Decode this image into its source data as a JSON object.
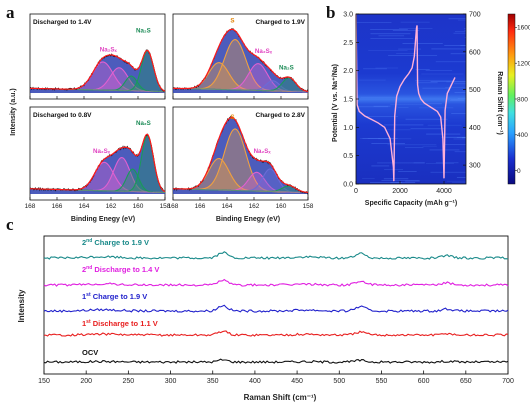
{
  "chart_data": [
    {
      "panel": "a",
      "type": "line",
      "layout": "2x2 grid of XPS S 2p spectra",
      "xlabel": "Binding Enegy (eV)",
      "ylabel": "Intensity (a.u.)",
      "xlim": [
        168,
        158
      ],
      "x_ticks": [
        168,
        166,
        164,
        162,
        160,
        158
      ],
      "subplots": [
        {
          "title": "Discharged to 1.4V",
          "annotations": [
            {
              "text": "Na₂Sₓ",
              "color": "#e040c0"
            },
            {
              "text": "Na₂S",
              "color": "#1a8a55"
            }
          ],
          "components": [
            {
              "center": 162.6,
              "height": 0.42,
              "width": 0.75,
              "color": "#e060d0"
            },
            {
              "center": 161.4,
              "height": 0.34,
              "width": 0.65,
              "color": "#e060d0"
            },
            {
              "center": 160.5,
              "height": 0.22,
              "width": 0.45,
              "color": "#1a9a5a"
            },
            {
              "center": 159.3,
              "height": 0.6,
              "width": 0.45,
              "color": "#1a9a5a"
            }
          ]
        },
        {
          "title": "Charged to 1.9V",
          "annotations": [
            {
              "text": "S",
              "color": "#e08000"
            },
            {
              "text": "Na₂Sₓ",
              "color": "#e040c0"
            },
            {
              "text": "Na₂S",
              "color": "#1a8a55"
            }
          ],
          "components": [
            {
              "center": 164.6,
              "height": 0.4,
              "width": 0.75,
              "color": "#f0a040"
            },
            {
              "center": 163.4,
              "height": 0.75,
              "width": 0.8,
              "color": "#f0a040"
            },
            {
              "center": 161.7,
              "height": 0.4,
              "width": 0.7,
              "color": "#e060d0"
            },
            {
              "center": 160.6,
              "height": 0.15,
              "width": 0.5,
              "color": "#6b6bd6"
            },
            {
              "center": 159.4,
              "height": 0.2,
              "width": 0.5,
              "color": "#1a9a5a"
            }
          ]
        },
        {
          "title": "Discharged to 0.8V",
          "annotations": [
            {
              "text": "Na₂Sₓ",
              "color": "#e040c0"
            },
            {
              "text": "Na₂S",
              "color": "#1a8a55"
            }
          ],
          "components": [
            {
              "center": 162.5,
              "height": 0.38,
              "width": 0.7,
              "color": "#e060d0"
            },
            {
              "center": 161.2,
              "height": 0.45,
              "width": 0.6,
              "color": "#e060d0"
            },
            {
              "center": 160.4,
              "height": 0.3,
              "width": 0.45,
              "color": "#1a9a5a"
            },
            {
              "center": 159.3,
              "height": 0.75,
              "width": 0.45,
              "color": "#1a9a5a"
            }
          ]
        },
        {
          "title": "Charged to 2.8V",
          "annotations": [
            {
              "text": "S",
              "color": "#e08000"
            },
            {
              "text": "Na₂Sₓ",
              "color": "#e040c0"
            }
          ],
          "components": [
            {
              "center": 164.6,
              "height": 0.42,
              "width": 0.75,
              "color": "#f0a040"
            },
            {
              "center": 163.4,
              "height": 0.82,
              "width": 0.8,
              "color": "#f0a040"
            },
            {
              "center": 161.8,
              "height": 0.25,
              "width": 0.6,
              "color": "#e060d0"
            },
            {
              "center": 160.8,
              "height": 0.3,
              "width": 0.55,
              "color": "#6b6bd6"
            },
            {
              "center": 159.4,
              "height": 0.08,
              "width": 0.5,
              "color": "#1a9a5a"
            }
          ]
        }
      ]
    },
    {
      "panel": "b",
      "type": "heatmap",
      "xlabel": "Specific Capacity (mAh g⁻¹)",
      "ylabel": "Potential (V vs. Na⁺/Na)",
      "y2label": "Raman Shift (cm⁻¹)",
      "xlim": [
        0,
        5000
      ],
      "x_ticks": [
        0,
        2000,
        4000
      ],
      "ylim": [
        0,
        3.0
      ],
      "y_ticks": [
        0.0,
        0.5,
        1.0,
        1.5,
        2.0,
        2.5,
        3.0
      ],
      "y2lim": [
        250,
        700
      ],
      "y2_ticks": [
        300,
        400,
        500,
        600,
        700
      ],
      "colorbar": {
        "ticks": [
          0,
          400,
          800,
          1200,
          1600
        ],
        "range": [
          -150,
          1750
        ]
      },
      "voltage_curve": {
        "x": [
          0,
          50,
          150,
          400,
          700,
          1000,
          1300,
          1550,
          1700,
          1720,
          1760,
          1850,
          2000,
          2200,
          2400,
          2550,
          2650,
          2700,
          2750,
          2775,
          2800,
          2850,
          2950,
          3100,
          3300,
          3500,
          3700,
          3850,
          3950,
          4000,
          4050,
          4150,
          4300,
          4500
        ],
        "y": [
          3.0,
          1.4,
          1.28,
          1.2,
          1.14,
          1.08,
          1.0,
          0.8,
          0.3,
          0.05,
          1.2,
          1.55,
          1.72,
          1.85,
          1.95,
          2.05,
          2.25,
          2.5,
          2.75,
          2.8,
          1.75,
          1.6,
          1.5,
          1.43,
          1.38,
          1.33,
          1.28,
          1.18,
          0.8,
          0.1,
          1.3,
          1.6,
          1.72,
          1.88
        ]
      }
    },
    {
      "panel": "c",
      "type": "line",
      "xlabel": "Raman Shift (cm⁻¹)",
      "ylabel": "Intensity",
      "xlim": [
        150,
        700
      ],
      "x_ticks": [
        150,
        200,
        250,
        300,
        350,
        400,
        450,
        500,
        550,
        600,
        650,
        700
      ],
      "peaks_cm-1": [
        362,
        525,
        628
      ],
      "series": [
        {
          "name": "OCV",
          "color": "#111111",
          "amplitude": 0.4
        },
        {
          "name": "1st Discharge to 1.1 V",
          "label_prefix": "1",
          "label_sup": "st",
          "label_rest": " Discharge to 1.1 V",
          "color": "#e82020",
          "amplitude": 0.7
        },
        {
          "name": "1st Charge to 1.9 V",
          "label_prefix": "1",
          "label_sup": "st",
          "label_rest": " Charge to 1.9 V",
          "color": "#2222cc",
          "amplitude": 1.0
        },
        {
          "name": "2nd Discharge to 1.4 V",
          "label_prefix": "2",
          "label_sup": "nd",
          "label_rest": " Discharge to 1.4 V",
          "color": "#e020e0",
          "amplitude": 0.9
        },
        {
          "name": "2nd Charge to 1.9 V",
          "label_prefix": "2",
          "label_sup": "nd",
          "label_rest": " Charge to 1.9 V",
          "color": "#1a8a8a",
          "amplitude": 1.0
        }
      ]
    }
  ],
  "panel_labels": {
    "a": "a",
    "b": "b",
    "c": "c"
  },
  "colors": {
    "envelope_fill": "#2d3fb0",
    "envelope_line": "#ff1a1a",
    "raw": "#111111"
  }
}
